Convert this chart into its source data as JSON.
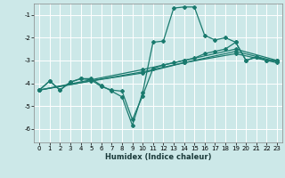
{
  "xlabel": "Humidex (Indice chaleur)",
  "xlim": [
    -0.5,
    23.5
  ],
  "ylim": [
    -6.6,
    -0.5
  ],
  "yticks": [
    -6,
    -5,
    -4,
    -3,
    -2,
    -1
  ],
  "xticks": [
    0,
    1,
    2,
    3,
    4,
    5,
    6,
    7,
    8,
    9,
    10,
    11,
    12,
    13,
    14,
    15,
    16,
    17,
    18,
    19,
    20,
    21,
    22,
    23
  ],
  "bg_color": "#cce8e8",
  "grid_color": "#ffffff",
  "line_color": "#1a7a6e",
  "lines": [
    {
      "x": [
        0,
        1,
        2,
        3,
        4,
        5,
        6,
        7,
        8,
        9,
        10,
        11,
        12,
        13,
        14,
        15,
        16,
        17,
        18,
        19,
        20,
        21,
        22,
        23
      ],
      "y": [
        -4.3,
        -3.9,
        -4.3,
        -3.95,
        -3.8,
        -3.8,
        -4.1,
        -4.35,
        -4.6,
        -5.85,
        -4.4,
        -2.2,
        -2.15,
        -0.7,
        -0.65,
        -0.65,
        -1.9,
        -2.1,
        -2.0,
        -2.2,
        -3.0,
        -2.85,
        -3.0,
        -3.0
      ]
    },
    {
      "x": [
        0,
        1,
        2,
        3,
        4,
        5,
        6,
        7,
        8,
        9,
        10,
        11,
        12,
        13,
        14,
        15,
        16,
        17,
        18,
        19,
        20,
        21,
        22,
        23
      ],
      "y": [
        -4.3,
        -3.9,
        -4.3,
        -3.95,
        -3.8,
        -3.85,
        -4.15,
        -4.3,
        -4.35,
        -5.6,
        -4.55,
        -3.35,
        -3.2,
        -3.1,
        -3.0,
        -2.9,
        -2.7,
        -2.6,
        -2.5,
        -2.2,
        -3.0,
        -2.85,
        -3.0,
        -3.0
      ]
    },
    {
      "x": [
        0,
        5,
        10,
        14,
        19,
        23
      ],
      "y": [
        -4.3,
        -3.85,
        -3.4,
        -3.0,
        -2.5,
        -3.0
      ]
    },
    {
      "x": [
        0,
        5,
        10,
        14,
        19,
        23
      ],
      "y": [
        -4.3,
        -3.9,
        -3.55,
        -3.1,
        -2.6,
        -3.05
      ]
    },
    {
      "x": [
        0,
        10,
        14,
        19,
        23
      ],
      "y": [
        -4.3,
        -3.5,
        -3.1,
        -2.7,
        -3.1
      ]
    }
  ],
  "xlabel_fontsize": 6.0,
  "tick_fontsize": 5.0
}
